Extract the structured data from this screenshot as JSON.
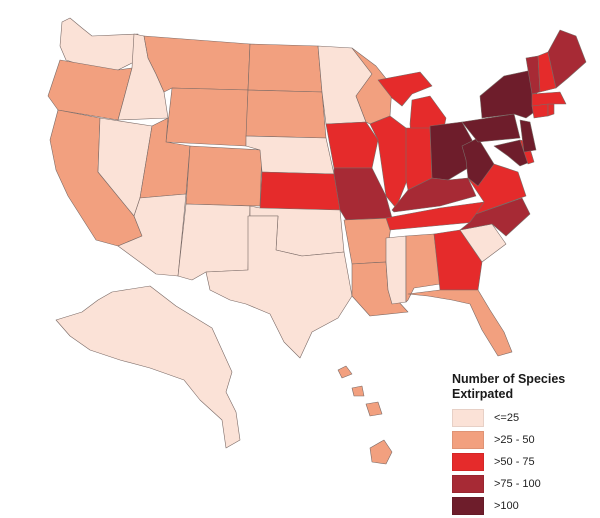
{
  "legend": {
    "title_line1": "Number of Species",
    "title_line2": "Extirpated",
    "classes": [
      {
        "label": "<=25",
        "color": "#fbe2d7"
      },
      {
        "label": ">25 - 50",
        "color": "#f2a07f"
      },
      {
        "label": ">50 - 75",
        "color": "#e52b2b"
      },
      {
        "label": ">75 - 100",
        "color": "#a72a35"
      },
      {
        "label": ">100",
        "color": "#6e1d2b"
      }
    ]
  },
  "map": {
    "region": "United States",
    "states": [
      {
        "name": "WA",
        "class": 0
      },
      {
        "name": "OR",
        "class": 1
      },
      {
        "name": "CA",
        "class": 1
      },
      {
        "name": "ID",
        "class": 0
      },
      {
        "name": "NV",
        "class": 0
      },
      {
        "name": "MT",
        "class": 1
      },
      {
        "name": "WY",
        "class": 1
      },
      {
        "name": "UT",
        "class": 1
      },
      {
        "name": "AZ",
        "class": 0
      },
      {
        "name": "CO",
        "class": 1
      },
      {
        "name": "NM",
        "class": 0
      },
      {
        "name": "ND",
        "class": 1
      },
      {
        "name": "SD",
        "class": 1
      },
      {
        "name": "NE",
        "class": 0
      },
      {
        "name": "KS",
        "class": 2
      },
      {
        "name": "OK",
        "class": 0
      },
      {
        "name": "TX",
        "class": 0
      },
      {
        "name": "MN",
        "class": 0
      },
      {
        "name": "IA",
        "class": 2
      },
      {
        "name": "MO",
        "class": 3
      },
      {
        "name": "AR",
        "class": 1
      },
      {
        "name": "LA",
        "class": 1
      },
      {
        "name": "WI",
        "class": 1
      },
      {
        "name": "IL",
        "class": 2
      },
      {
        "name": "MI",
        "class": 2
      },
      {
        "name": "IN",
        "class": 2
      },
      {
        "name": "OH",
        "class": 4
      },
      {
        "name": "KY",
        "class": 3
      },
      {
        "name": "TN",
        "class": 2
      },
      {
        "name": "MS",
        "class": 0
      },
      {
        "name": "AL",
        "class": 1
      },
      {
        "name": "GA",
        "class": 2
      },
      {
        "name": "FL",
        "class": 1
      },
      {
        "name": "SC",
        "class": 0
      },
      {
        "name": "NC",
        "class": 3
      },
      {
        "name": "VA",
        "class": 2
      },
      {
        "name": "WV",
        "class": 4
      },
      {
        "name": "PA",
        "class": 4
      },
      {
        "name": "NY",
        "class": 4
      },
      {
        "name": "MD",
        "class": 4
      },
      {
        "name": "DE",
        "class": 2
      },
      {
        "name": "NJ",
        "class": 4
      },
      {
        "name": "CT",
        "class": 2
      },
      {
        "name": "RI",
        "class": 2
      },
      {
        "name": "MA",
        "class": 2
      },
      {
        "name": "VT",
        "class": 3
      },
      {
        "name": "NH",
        "class": 2
      },
      {
        "name": "ME",
        "class": 3
      },
      {
        "name": "AK",
        "class": 0
      },
      {
        "name": "HI",
        "class": 1
      }
    ]
  }
}
